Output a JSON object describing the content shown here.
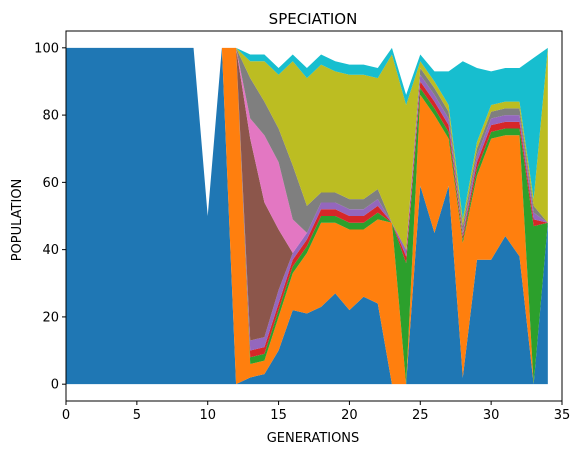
{
  "chart_data": {
    "type": "area",
    "stacked": true,
    "title": "SPECIATION",
    "xlabel": "GENERATIONS",
    "ylabel": "POPULATION",
    "xlim": [
      0,
      35
    ],
    "ylim": [
      -5,
      105
    ],
    "xticks": [
      0,
      5,
      10,
      15,
      20,
      25,
      30,
      35
    ],
    "yticks": [
      0,
      20,
      40,
      60,
      80,
      100
    ],
    "grid": false,
    "legend": "none",
    "x": [
      0,
      1,
      2,
      3,
      4,
      5,
      6,
      7,
      8,
      9,
      10,
      11,
      12,
      13,
      14,
      15,
      16,
      17,
      18,
      19,
      20,
      21,
      22,
      23,
      24,
      25,
      26,
      27,
      28,
      29,
      30,
      31,
      32,
      33,
      34
    ],
    "series": [
      {
        "color": "#1f77b4",
        "values": [
          100,
          100,
          100,
          100,
          100,
          100,
          100,
          100,
          100,
          100,
          50,
          100,
          0,
          2,
          3,
          10,
          22,
          21,
          23,
          27,
          22,
          26,
          24,
          0,
          0,
          59,
          45,
          59,
          2,
          37,
          37,
          44,
          38,
          0,
          48
        ]
      },
      {
        "color": "#ff7f0e",
        "values": [
          0,
          0,
          0,
          0,
          0,
          0,
          0,
          0,
          0,
          0,
          0,
          0,
          100,
          4,
          4,
          10,
          11,
          18,
          25,
          21,
          24,
          20,
          25,
          48,
          0,
          27,
          35,
          14,
          40,
          25,
          36,
          30,
          36,
          0,
          0
        ]
      },
      {
        "color": "#2ca02c",
        "values": [
          0,
          0,
          0,
          0,
          0,
          0,
          0,
          0,
          0,
          0,
          0,
          0,
          0,
          2,
          2,
          2,
          2,
          2,
          2,
          2,
          2,
          2,
          2,
          0,
          36,
          2,
          2,
          2,
          1,
          2,
          2,
          2,
          2,
          47,
          0
        ]
      },
      {
        "color": "#d62728",
        "values": [
          0,
          0,
          0,
          0,
          0,
          0,
          0,
          0,
          0,
          0,
          0,
          0,
          0,
          2,
          2,
          2,
          2,
          2,
          2,
          2,
          2,
          2,
          2,
          0,
          2,
          2,
          2,
          2,
          1,
          2,
          2,
          2,
          2,
          2,
          0
        ]
      },
      {
        "color": "#9467bd",
        "values": [
          0,
          0,
          0,
          0,
          0,
          0,
          0,
          0,
          0,
          0,
          0,
          0,
          0,
          3,
          3,
          4,
          2,
          2,
          2,
          2,
          2,
          2,
          2,
          0,
          2,
          2,
          2,
          2,
          1,
          2,
          2,
          2,
          2,
          2,
          0
        ]
      },
      {
        "color": "#8c564b",
        "values": [
          0,
          0,
          0,
          0,
          0,
          0,
          0,
          0,
          0,
          0,
          0,
          0,
          0,
          60,
          40,
          18,
          0,
          0,
          0,
          0,
          0,
          0,
          0,
          0,
          0,
          0,
          0,
          0,
          0,
          0,
          0,
          0,
          0,
          0,
          0
        ]
      },
      {
        "color": "#e377c2",
        "values": [
          0,
          0,
          0,
          0,
          0,
          0,
          0,
          0,
          0,
          0,
          0,
          0,
          0,
          6,
          20,
          20,
          10,
          0,
          0,
          0,
          0,
          0,
          0,
          0,
          0,
          0,
          0,
          0,
          0,
          0,
          0,
          0,
          0,
          0,
          0
        ]
      },
      {
        "color": "#7f7f7f",
        "values": [
          0,
          0,
          0,
          0,
          0,
          0,
          0,
          0,
          0,
          0,
          0,
          0,
          0,
          12,
          10,
          10,
          16,
          8,
          3,
          3,
          3,
          3,
          3,
          0,
          0,
          2,
          2,
          2,
          2,
          2,
          2,
          2,
          2,
          2,
          0
        ]
      },
      {
        "color": "#bcbd22",
        "values": [
          0,
          0,
          0,
          0,
          0,
          0,
          0,
          0,
          0,
          0,
          0,
          0,
          0,
          5,
          12,
          16,
          31,
          38,
          38,
          36,
          37,
          37,
          33,
          50,
          43,
          2,
          2,
          2,
          2,
          2,
          2,
          2,
          2,
          2,
          52
        ]
      },
      {
        "color": "#17becf",
        "values": [
          0,
          0,
          0,
          0,
          0,
          0,
          0,
          0,
          0,
          0,
          0,
          0,
          0,
          2,
          2,
          2,
          2,
          3,
          3,
          3,
          3,
          3,
          3,
          2,
          3,
          2,
          3,
          10,
          47,
          22,
          10,
          10,
          10,
          42,
          0
        ]
      }
    ]
  }
}
